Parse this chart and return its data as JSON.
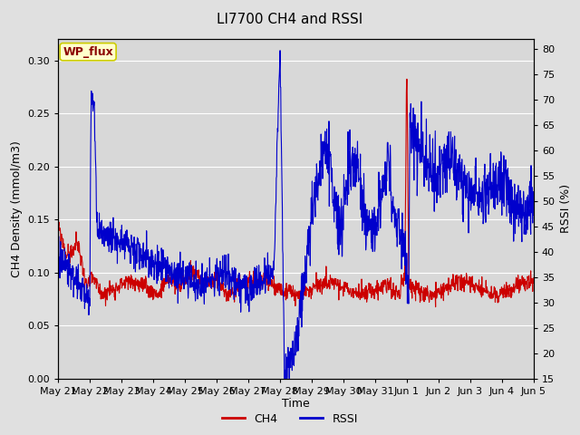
{
  "title": "LI7700 CH4 and RSSI",
  "xlabel": "Time",
  "ylabel_left": "CH4 Density (mmol/m3)",
  "ylabel_right": "RSSI (%)",
  "ch4_color": "#cc0000",
  "rssi_color": "#0000cc",
  "ylim_left": [
    0.0,
    0.32
  ],
  "ylim_right": [
    15,
    82
  ],
  "yticks_left": [
    0.0,
    0.05,
    0.1,
    0.15,
    0.2,
    0.25,
    0.3
  ],
  "yticks_right": [
    15,
    20,
    25,
    30,
    35,
    40,
    45,
    50,
    55,
    60,
    65,
    70,
    75,
    80
  ],
  "xtick_labels": [
    "May 21",
    "May 22",
    "May 23",
    "May 24",
    "May 25",
    "May 26",
    "May 27",
    "May 28",
    "May 29",
    "May 30",
    "May 31",
    "Jun 1",
    "Jun 2",
    "Jun 3",
    "Jun 4",
    "Jun 5"
  ],
  "fig_bg_color": "#e0e0e0",
  "plot_bg_color": "#d8d8d8",
  "grid_color": "#ffffff",
  "wp_flux_label": "WP_flux",
  "wp_flux_text_color": "#8b0000",
  "wp_flux_bg": "#ffffcc",
  "wp_flux_border": "#cccc00",
  "legend_ch4": "CH4",
  "legend_rssi": "RSSI",
  "linewidth_ch4": 0.8,
  "linewidth_rssi": 0.8,
  "title_fontsize": 11,
  "axis_label_fontsize": 9,
  "tick_fontsize": 8,
  "n_points": 1500
}
